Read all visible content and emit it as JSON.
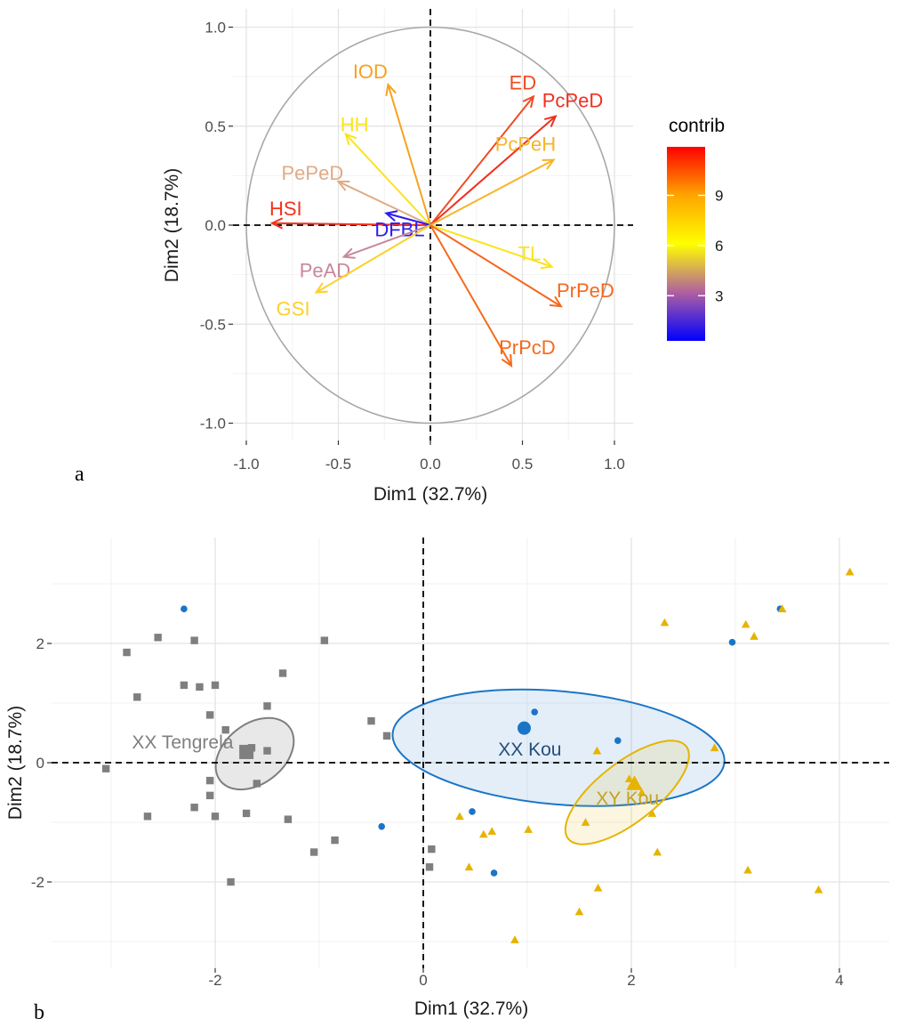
{
  "chart_data": [
    {
      "panel": "a",
      "type": "scatter",
      "subtype": "pca-variable-correlation-circle",
      "xlabel": "Dim1 (32.7%)",
      "ylabel": "Dim2 (18.7%)",
      "xlim": [
        -1.05,
        1.05
      ],
      "ylim": [
        -1.05,
        1.05
      ],
      "xticks": [
        "-1.0",
        "-0.5",
        "0.0",
        "0.5",
        "1.0"
      ],
      "yticks": [
        "1.0",
        "0.5",
        "0.0",
        "-0.5",
        "-1.0"
      ],
      "grid": true,
      "legend": {
        "title": "contrib",
        "position": "right",
        "ticks": [
          "9",
          "6",
          "3"
        ],
        "tick_values": [
          9,
          6,
          3
        ],
        "range": [
          0.3,
          11.9
        ],
        "colors": [
          "#0000ff",
          "#b060a0",
          "#ffff00",
          "#ffa500",
          "#ff0000"
        ]
      },
      "variables": [
        {
          "name": "ED",
          "x": 0.56,
          "y": 0.65,
          "color": "#f24a22"
        },
        {
          "name": "PcPeD",
          "x": 0.68,
          "y": 0.55,
          "color": "#f03020"
        },
        {
          "name": "PcPeH",
          "x": 0.67,
          "y": 0.33,
          "color": "#f7b42a"
        },
        {
          "name": "IOD",
          "x": -0.23,
          "y": 0.71,
          "color": "#f7a21f"
        },
        {
          "name": "HH",
          "x": -0.46,
          "y": 0.46,
          "color": "#fbe31e"
        },
        {
          "name": "PePeD",
          "x": -0.5,
          "y": 0.22,
          "color": "#e0ab86"
        },
        {
          "name": "HSI",
          "x": -0.86,
          "y": 0.01,
          "color": "#f5321d"
        },
        {
          "name": "DFBL",
          "x": -0.24,
          "y": 0.06,
          "color": "#2a1ef0"
        },
        {
          "name": "PeAD",
          "x": -0.47,
          "y": -0.16,
          "color": "#c8879a"
        },
        {
          "name": "GSI",
          "x": -0.62,
          "y": -0.34,
          "color": "#fbd12b"
        },
        {
          "name": "TL",
          "x": 0.66,
          "y": -0.21,
          "color": "#fbe31e"
        },
        {
          "name": "PrPeD",
          "x": 0.71,
          "y": -0.41,
          "color": "#f4681e"
        },
        {
          "name": "PrPcD",
          "x": 0.44,
          "y": -0.71,
          "color": "#f56a1c"
        }
      ]
    },
    {
      "panel": "b",
      "type": "scatter",
      "subtype": "pca-individuals-with-group-ellipses",
      "xlabel": "Dim1 (32.7%)",
      "ylabel": "Dim2 (18.7%)",
      "xlim": [
        -3.2,
        4.5
      ],
      "ylim": [
        -3.1,
        3.3
      ],
      "xticks": [
        "-2",
        "0",
        "2",
        "4"
      ],
      "yticks": [
        "2",
        "0",
        "-2"
      ],
      "grid": true,
      "series": [
        {
          "name": "XX Tengrela",
          "color": "#7f7f7f",
          "marker": "square",
          "mean": [
            -1.7,
            0.18
          ],
          "ellipse": {
            "cx": -1.62,
            "cy": 0.15,
            "rx": 0.42,
            "ry": 0.5,
            "angle_deg": -38
          },
          "points": [
            [
              -2.85,
              1.85
            ],
            [
              -2.55,
              2.1
            ],
            [
              -2.2,
              2.05
            ],
            [
              -2.3,
              1.3
            ],
            [
              -2.15,
              1.27
            ],
            [
              -2.0,
              1.3
            ],
            [
              -2.75,
              1.1
            ],
            [
              -2.05,
              0.8
            ],
            [
              -1.9,
              0.55
            ],
            [
              -1.5,
              0.95
            ],
            [
              -1.35,
              1.5
            ],
            [
              -0.95,
              2.05
            ],
            [
              -1.65,
              0.25
            ],
            [
              -1.7,
              0.15
            ],
            [
              -1.5,
              0.2
            ],
            [
              -1.6,
              -0.35
            ],
            [
              -2.05,
              -0.3
            ],
            [
              -2.05,
              -0.55
            ],
            [
              -3.05,
              -0.1
            ],
            [
              -2.65,
              -0.9
            ],
            [
              -2.2,
              -0.75
            ],
            [
              -2.0,
              -0.9
            ],
            [
              -1.7,
              -0.85
            ],
            [
              -1.3,
              -0.95
            ],
            [
              -0.85,
              -1.3
            ],
            [
              -1.05,
              -1.5
            ],
            [
              -1.85,
              -2.0
            ],
            [
              -0.5,
              0.7
            ],
            [
              -0.35,
              0.45
            ],
            [
              0.08,
              -1.45
            ],
            [
              0.06,
              -1.75
            ]
          ]
        },
        {
          "name": "XX Kou",
          "color": "#1b75c6",
          "marker": "circle",
          "mean": [
            0.97,
            0.58
          ],
          "ellipse": {
            "cx": 1.3,
            "cy": 0.25,
            "rx": 1.6,
            "ry": 0.95,
            "angle_deg": 5
          },
          "points": [
            [
              -2.3,
              2.58
            ],
            [
              1.07,
              0.85
            ],
            [
              1.87,
              0.37
            ],
            [
              0.47,
              -0.82
            ],
            [
              -0.4,
              -1.07
            ],
            [
              0.68,
              -1.85
            ],
            [
              2.97,
              2.02
            ],
            [
              3.43,
              2.58
            ]
          ]
        },
        {
          "name": "XY Kou",
          "color": "#e6b300",
          "marker": "triangle",
          "mean": [
            2.03,
            -0.35
          ],
          "ellipse": {
            "cx": 1.96,
            "cy": -0.5,
            "rx": 0.72,
            "ry": 0.5,
            "angle_deg": -38
          },
          "points": [
            [
              0.35,
              -0.9
            ],
            [
              0.58,
              -1.2
            ],
            [
              0.66,
              -1.15
            ],
            [
              0.44,
              -1.75
            ],
            [
              1.01,
              -1.12
            ],
            [
              0.88,
              -2.97
            ],
            [
              1.5,
              -2.5
            ],
            [
              1.68,
              -2.1
            ],
            [
              1.56,
              -1.0
            ],
            [
              1.67,
              0.2
            ],
            [
              1.98,
              -0.27
            ],
            [
              2.02,
              -0.4
            ],
            [
              2.1,
              -0.5
            ],
            [
              2.2,
              -0.85
            ],
            [
              2.25,
              -1.5
            ],
            [
              2.32,
              2.35
            ],
            [
              2.8,
              0.25
            ],
            [
              3.1,
              2.32
            ],
            [
              3.18,
              2.12
            ],
            [
              3.45,
              2.58
            ],
            [
              3.12,
              -1.8
            ],
            [
              3.8,
              -2.13
            ],
            [
              4.1,
              3.2
            ]
          ]
        }
      ]
    }
  ],
  "panel_labels": {
    "a": "a",
    "b": "b"
  }
}
